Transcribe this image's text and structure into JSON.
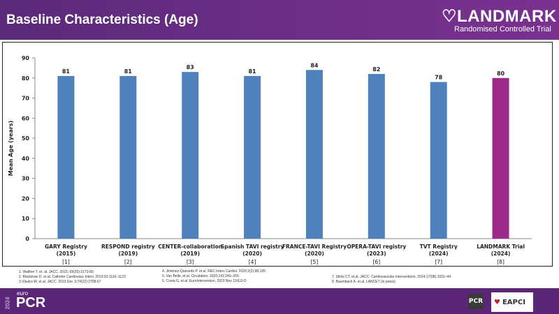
{
  "header": {
    "title": "Baseline Characteristics (Age)",
    "logo_main": "LANDMARK",
    "logo_sub": "Randomised Controlled Trial"
  },
  "chart_data": {
    "type": "bar",
    "ylabel": "Mean Age (years)",
    "ylim": [
      0,
      90
    ],
    "yticks": [
      0,
      10,
      20,
      30,
      40,
      50,
      60,
      70,
      80,
      90
    ],
    "grid": false,
    "categories": [
      {
        "line1": "GARY Registry",
        "line2": "(2015)",
        "ref": "[1]"
      },
      {
        "line1": "RESPOND registry",
        "line2": "(2019)",
        "ref": "[2]"
      },
      {
        "line1": "CENTER-collaboration",
        "line2": "(2019)",
        "ref": "[3]"
      },
      {
        "line1": "Spanish TAVI registry",
        "line2": "(2020)",
        "ref": "[4]"
      },
      {
        "line1": "FRANCE-TAVI Registry",
        "line2": "(2020)",
        "ref": "[5]"
      },
      {
        "line1": "OPERA-TAVI registry",
        "line2": "(2023)",
        "ref": "[6]"
      },
      {
        "line1": "TVT Registry",
        "line2": "(2024)",
        "ref": "[7]"
      },
      {
        "line1": "LANDMARK Trial",
        "line2": "(2024)",
        "ref": "[8]"
      }
    ],
    "values": [
      81,
      81,
      83,
      81,
      84,
      82,
      78,
      80
    ],
    "colors": [
      "#4f81bd",
      "#4f81bd",
      "#4f81bd",
      "#4f81bd",
      "#4f81bd",
      "#4f81bd",
      "#4f81bd",
      "#9b2a8a"
    ]
  },
  "references": {
    "col1": [
      "1. Walther T. et. al. JACC. 2015; 65(20):2173-80",
      "2. Blackman D. et.al. Catheter Cardiovasc Interv. 2019;93:1116–1123",
      "3.Vlastra W, et.al. JACC. 2019 Dec 3;74(22):2758-67"
    ],
    "col2": [
      "4. Jiménez-Quevedo P. et.al. REC Interv Cardiol. 2020;2(2):98-105",
      "5. Van Belle, et.al. Circulation. 2020;141:243–259",
      "6. Costa G, et.al. EuroIntervention, 2023 Nov 19:EIJ-D"
    ],
    "col3": [
      "7. Stinis CT, et.al. JACC: Cardiovascular Interventions. 2024;17(08):1032–44",
      "8. Baumbach A. et.al. LANCET (in press)"
    ]
  },
  "footer": {
    "year": "2024",
    "euro": "euro",
    "pcr": "PCR",
    "pcr_badge": "PCR",
    "eapci": "EAPCI"
  }
}
